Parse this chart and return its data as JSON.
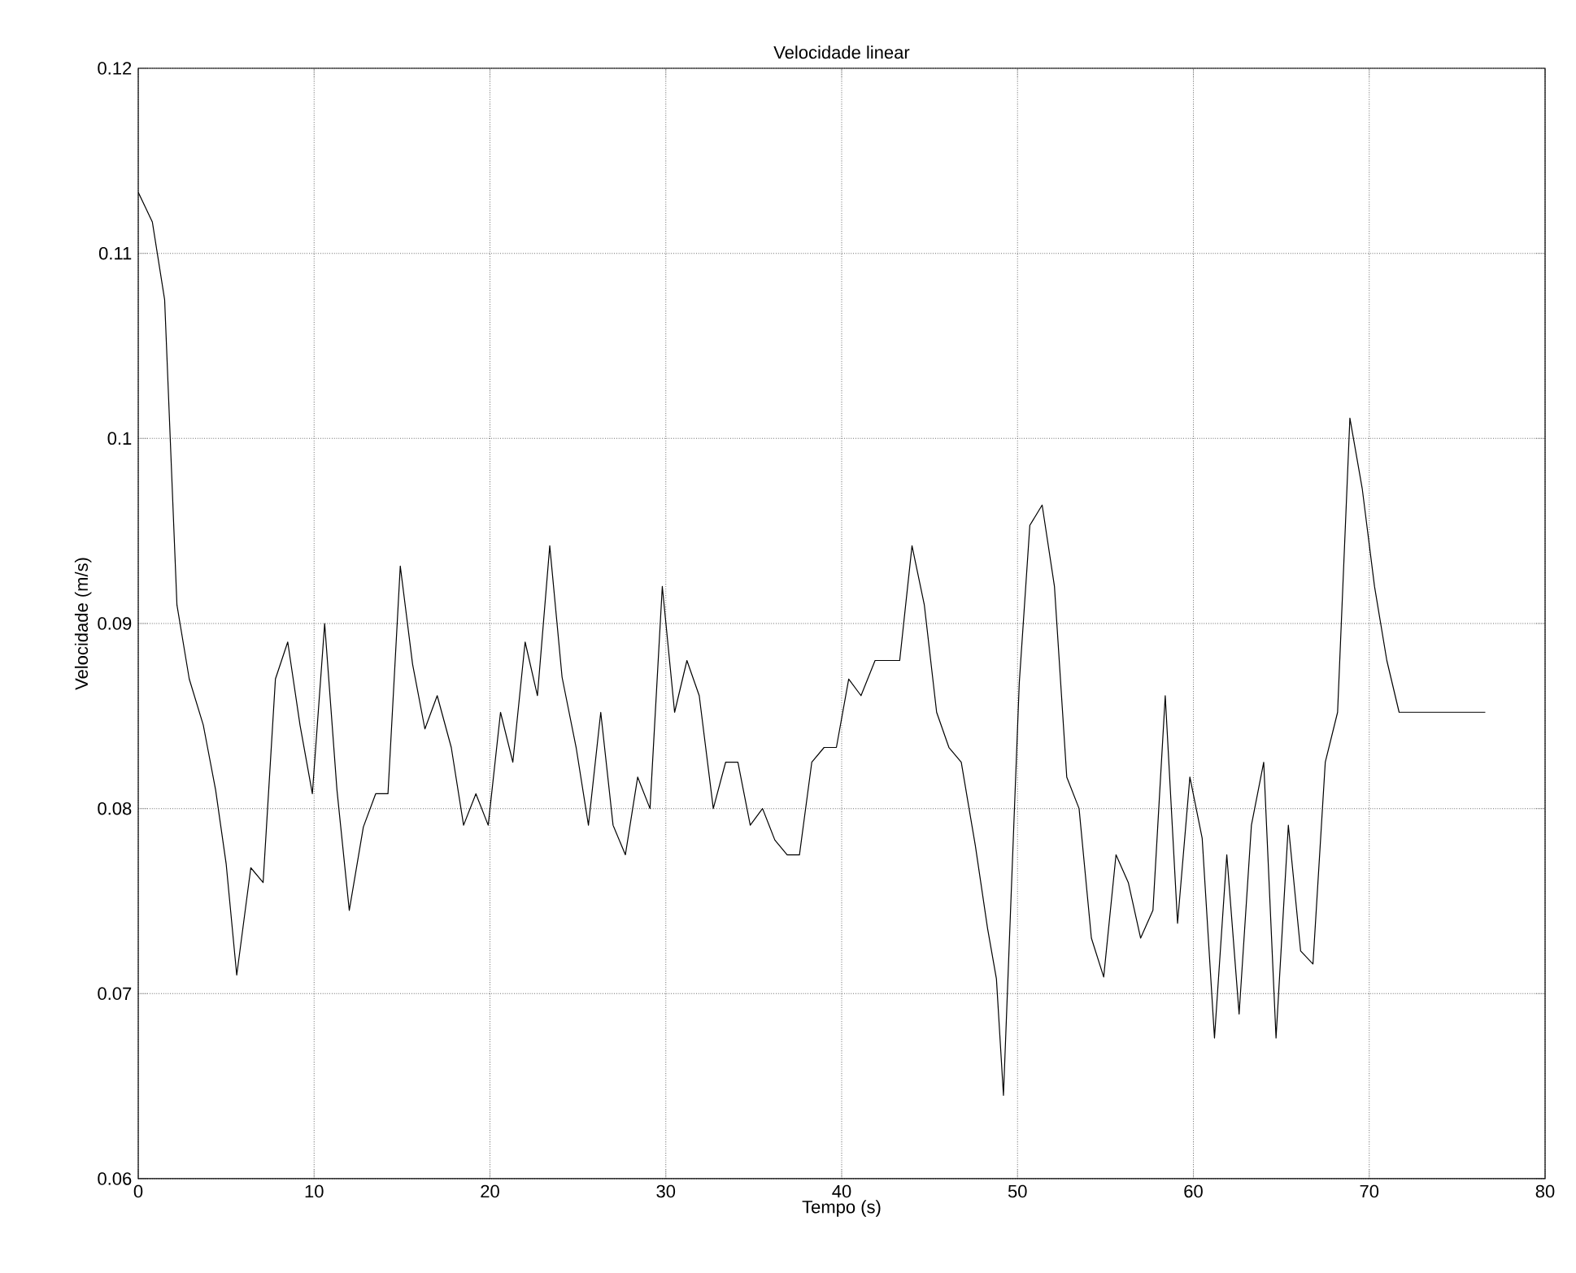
{
  "chart_data": {
    "type": "line",
    "title": "Velocidade linear",
    "xlabel": "Tempo (s)",
    "ylabel": "Velocidade (m/s)",
    "xlim": [
      0,
      80
    ],
    "ylim": [
      0.06,
      0.12
    ],
    "xticks": [
      0,
      10,
      20,
      30,
      40,
      50,
      60,
      70,
      80
    ],
    "yticks": [
      0.06,
      0.07,
      0.08,
      0.09,
      0.1,
      0.11,
      0.12
    ],
    "grid": true,
    "marker": "none",
    "line_style": "solid",
    "series": [
      {
        "color": "#000000",
        "x": [
          0,
          0.8,
          1.5,
          2.2,
          2.9,
          3.7,
          4.4,
          5.0,
          5.6,
          6.4,
          7.1,
          7.8,
          8.5,
          9.2,
          9.9,
          10.6,
          11.3,
          12.0,
          12.8,
          13.5,
          14.2,
          14.9,
          15.6,
          16.3,
          17.0,
          17.8,
          18.5,
          19.2,
          19.9,
          20.6,
          21.3,
          22.0,
          22.7,
          23.4,
          24.1,
          24.9,
          25.6,
          26.3,
          27.0,
          27.7,
          28.4,
          29.1,
          29.8,
          30.5,
          31.2,
          31.9,
          32.7,
          33.4,
          34.1,
          34.8,
          35.5,
          36.2,
          36.9,
          37.6,
          38.3,
          39.0,
          39.7,
          40.4,
          41.1,
          41.9,
          42.6,
          43.3,
          44.0,
          44.7,
          45.4,
          46.1,
          46.8,
          47.6,
          48.3,
          48.8,
          49.2,
          50.1,
          50.7,
          51.4,
          52.1,
          52.8,
          53.5,
          54.2,
          54.9,
          55.6,
          56.3,
          57.0,
          57.7,
          58.4,
          59.1,
          59.8,
          60.5,
          61.2,
          61.9,
          62.6,
          63.3,
          64.0,
          64.7,
          65.4,
          66.1,
          66.8,
          67.5,
          68.2,
          68.9,
          69.6,
          70.3,
          71.0,
          71.7,
          76.6
        ],
        "values": [
          0.1133,
          0.1117,
          0.1075,
          0.091,
          0.087,
          0.0845,
          0.081,
          0.077,
          0.071,
          0.0768,
          0.076,
          0.087,
          0.089,
          0.0845,
          0.0808,
          0.09,
          0.081,
          0.0745,
          0.079,
          0.0808,
          0.0808,
          0.0931,
          0.0878,
          0.0843,
          0.0861,
          0.0833,
          0.0791,
          0.0808,
          0.0791,
          0.0852,
          0.0825,
          0.089,
          0.0861,
          0.0942,
          0.0871,
          0.0833,
          0.0791,
          0.0852,
          0.0791,
          0.0775,
          0.0817,
          0.08,
          0.092,
          0.0852,
          0.088,
          0.0861,
          0.08,
          0.0825,
          0.0825,
          0.0791,
          0.08,
          0.0783,
          0.0775,
          0.0775,
          0.0825,
          0.0833,
          0.0833,
          0.087,
          0.0861,
          0.088,
          0.088,
          0.088,
          0.0942,
          0.091,
          0.0852,
          0.0833,
          0.0825,
          0.078,
          0.0735,
          0.0708,
          0.0645,
          0.0868,
          0.0953,
          0.0964,
          0.092,
          0.0817,
          0.08,
          0.073,
          0.0709,
          0.0775,
          0.076,
          0.073,
          0.0745,
          0.0861,
          0.0738,
          0.0817,
          0.0784,
          0.0676,
          0.0775,
          0.0689,
          0.0791,
          0.0825,
          0.0676,
          0.0791,
          0.0723,
          0.0716,
          0.0825,
          0.0852,
          0.1011,
          0.0973,
          0.092,
          0.088,
          0.0852,
          0.0852
        ]
      }
    ]
  }
}
